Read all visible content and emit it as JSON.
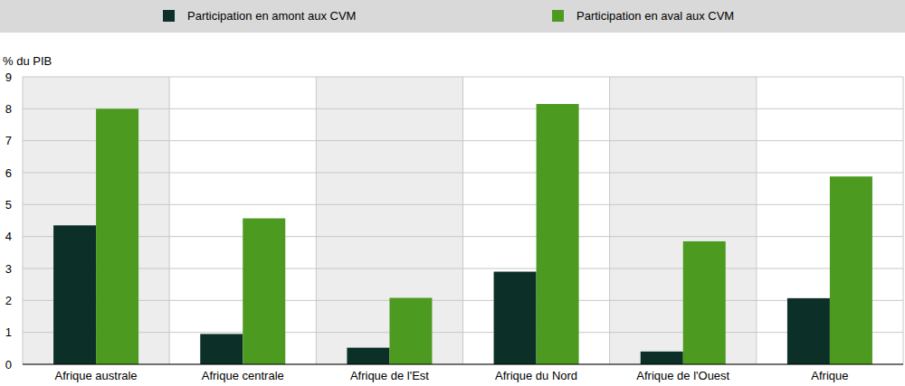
{
  "chart_data": {
    "type": "bar",
    "y_label": "% du PIB",
    "categories": [
      "Afrique australe",
      "Afrique centrale",
      "Afrique de l'Est",
      "Afrique du Nord",
      "Afrique de l'Ouest",
      "Afrique"
    ],
    "series": [
      {
        "name": "Participation en amont aux CVM",
        "color": "#0c2f27",
        "values": [
          4.35,
          0.95,
          0.52,
          2.9,
          0.4,
          2.07
        ]
      },
      {
        "name": "Participation en aval aux CVM",
        "color": "#4c9a1f",
        "values": [
          8.0,
          4.57,
          2.08,
          8.15,
          3.85,
          5.88
        ]
      }
    ],
    "ylim": [
      0,
      9
    ],
    "yticks": [
      0,
      1,
      2,
      3,
      4,
      5,
      6,
      7,
      8,
      9
    ],
    "grid": true,
    "legend": "top"
  }
}
